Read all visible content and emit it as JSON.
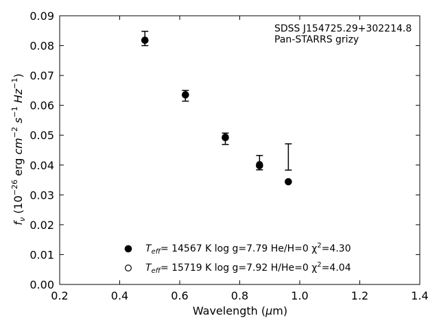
{
  "chart_data": {
    "type": "scatter",
    "xlabel": "Wavelength (μm)",
    "ylabel": "f_ν (10⁻²⁶ erg cm⁻² s⁻¹ Hz⁻¹)",
    "xlim": [
      0.2,
      1.4
    ],
    "ylim": [
      0.0,
      0.09
    ],
    "x_ticks": [
      "0.2",
      "0.4",
      "0.6",
      "0.8",
      "1.0",
      "1.2",
      "1.4"
    ],
    "y_ticks": [
      "0.00",
      "0.01",
      "0.02",
      "0.03",
      "0.04",
      "0.05",
      "0.06",
      "0.07",
      "0.08",
      "0.09"
    ],
    "annotation": [
      "SDSS J154725.29+302214.8",
      "Pan-STARRS grizy"
    ],
    "legend_position": "lower-center",
    "grid": false,
    "observed": {
      "x": [
        0.484,
        0.619,
        0.752,
        0.866,
        0.962
      ],
      "y": [
        0.0824,
        0.0632,
        0.0488,
        0.0408,
        0.0427
      ],
      "yerr": [
        0.0024,
        0.0018,
        0.0019,
        0.0024,
        0.0044
      ]
    },
    "series": [
      {
        "name": "T_eff= 14567 K  log g=7.79  He/H=0  χ²=4.30",
        "marker": "filled-circle",
        "x": [
          0.484,
          0.619,
          0.752,
          0.866,
          0.962
        ],
        "y": [
          0.0818,
          0.0635,
          0.0492,
          0.0398,
          0.0344
        ]
      },
      {
        "name": "T_eff= 15719 K  log g=7.92  H/He=0  χ²=4.04",
        "marker": "open-circle",
        "x": [
          0.484,
          0.619,
          0.752,
          0.866
        ],
        "y": [
          0.0818,
          0.0636,
          0.0494,
          0.0402
        ]
      }
    ]
  },
  "legend": {
    "items": [
      {
        "teff_value": "= 14567 K  log g=7.79  He/H=0  χ",
        "chi_value": "=4.30"
      },
      {
        "teff_value": "= 15719 K  log g=7.92  H/He=0  χ",
        "chi_value": "=4.04"
      }
    ]
  }
}
